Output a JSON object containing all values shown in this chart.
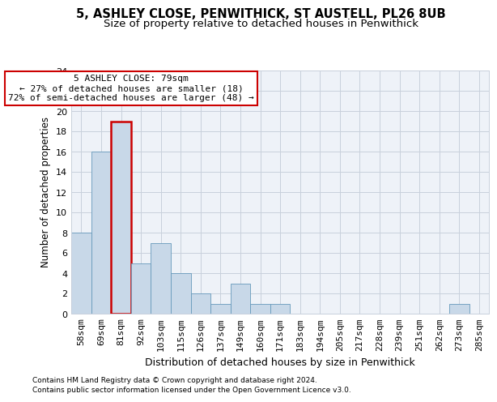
{
  "title1": "5, ASHLEY CLOSE, PENWITHICK, ST AUSTELL, PL26 8UB",
  "title2": "Size of property relative to detached houses in Penwithick",
  "xlabel": "Distribution of detached houses by size in Penwithick",
  "ylabel": "Number of detached properties",
  "bar_labels": [
    "58sqm",
    "69sqm",
    "81sqm",
    "92sqm",
    "103sqm",
    "115sqm",
    "126sqm",
    "137sqm",
    "149sqm",
    "160sqm",
    "171sqm",
    "183sqm",
    "194sqm",
    "205sqm",
    "217sqm",
    "228sqm",
    "239sqm",
    "251sqm",
    "262sqm",
    "273sqm",
    "285sqm"
  ],
  "bar_values": [
    8,
    16,
    19,
    5,
    7,
    4,
    2,
    1,
    3,
    1,
    1,
    0,
    0,
    0,
    0,
    0,
    0,
    0,
    0,
    1,
    0
  ],
  "bar_color": "#c8d8e8",
  "bar_edge_color": "#6699bb",
  "highlight_bar_index": 2,
  "highlight_bar_edge_color": "#cc0000",
  "annotation_text": "5 ASHLEY CLOSE: 79sqm\n← 27% of detached houses are smaller (18)\n72% of semi-detached houses are larger (48) →",
  "annotation_box_edge": "#cc0000",
  "ylim": [
    0,
    24
  ],
  "yticks": [
    0,
    2,
    4,
    6,
    8,
    10,
    12,
    14,
    16,
    18,
    20,
    22,
    24
  ],
  "footer1": "Contains HM Land Registry data © Crown copyright and database right 2024.",
  "footer2": "Contains public sector information licensed under the Open Government Licence v3.0.",
  "bg_color": "#eef2f8",
  "grid_color": "#c8d0dc",
  "title1_fontsize": 10.5,
  "title2_fontsize": 9.5,
  "xlabel_fontsize": 9,
  "ylabel_fontsize": 8.5,
  "tick_fontsize": 8,
  "footer_fontsize": 6.5,
  "ann_fontsize": 8
}
